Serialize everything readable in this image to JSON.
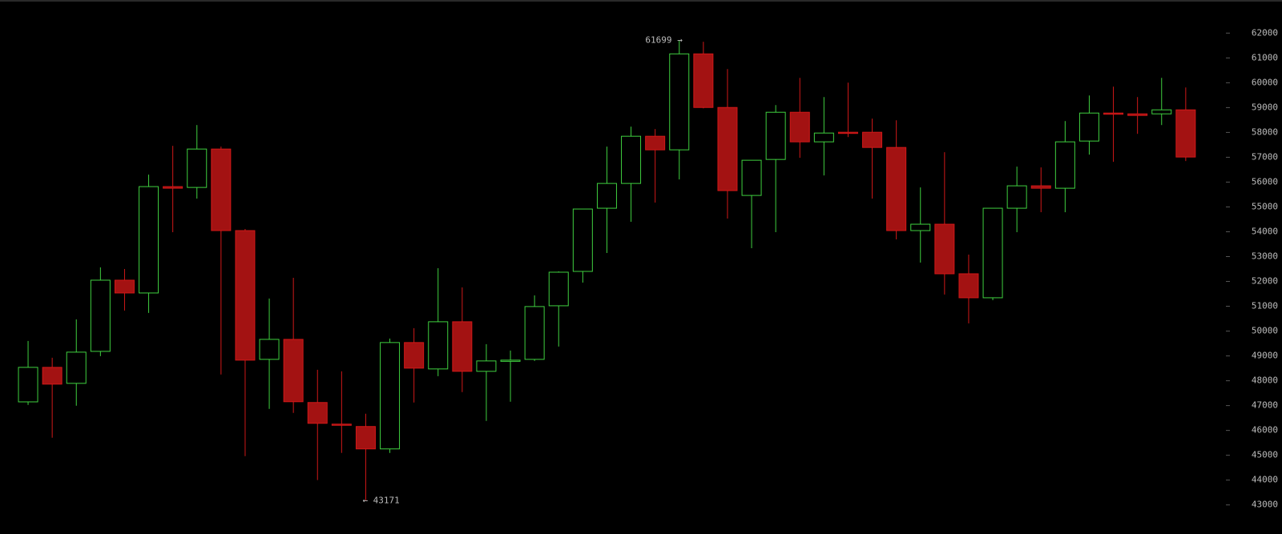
{
  "chart_data": {
    "type": "candlestick",
    "up_color": "#3fcf3f",
    "down_color": "#a31212",
    "down_edge": "#d01818",
    "open": [
      47150,
      48540,
      47896,
      49184,
      52050,
      51535,
      55818,
      55785,
      57331,
      54047,
      48862,
      49667,
      47124,
      46254,
      46158,
      45256,
      49539,
      48476,
      50376,
      48380,
      48798,
      48862,
      51020,
      52404,
      54948,
      55946,
      57846,
      57299,
      61163,
      59005,
      55463,
      56912,
      58812,
      57621,
      58007,
      58007,
      57395,
      54047,
      54304,
      52308,
      51342,
      54948,
      55850,
      55753,
      57653,
      58780,
      58748,
      58748,
      58909
    ],
    "high": [
      49603,
      48927,
      50472,
      52565,
      52501,
      56301,
      57460,
      58297,
      57428,
      54111,
      51310,
      52147,
      48444,
      48380,
      46673,
      49700,
      50118,
      52533,
      51760,
      49474,
      49217,
      51438,
      52404,
      54916,
      57428,
      58233,
      58136,
      61699,
      61650,
      60551,
      56880,
      59102,
      60197,
      59424,
      60004,
      58555,
      58490,
      55785,
      57202,
      53081,
      54948,
      56623,
      56591,
      58458,
      59488,
      59843,
      59424,
      60197,
      59810
    ],
    "low": [
      47027,
      45707,
      46995,
      48991,
      50827,
      50730,
      53982,
      55335,
      48251,
      44966,
      46866,
      46705,
      44000,
      45095,
      43171,
      45095,
      47124,
      48186,
      47542,
      46383,
      47156,
      48800,
      49378,
      51953,
      53145,
      54401,
      55174,
      56107,
      58970,
      54530,
      53338,
      53982,
      56977,
      56268,
      57814,
      55335,
      53692,
      52759,
      51471,
      50311,
      51245,
      53982,
      54787,
      54787,
      57106,
      56816,
      57943,
      58297,
      56848
    ],
    "close": [
      48540,
      47864,
      49152,
      52050,
      51535,
      55818,
      55753,
      57331,
      54047,
      48830,
      49667,
      47156,
      46286,
      46222,
      45256,
      49539,
      48508,
      50376,
      48380,
      48798,
      48830,
      50988,
      52372,
      54916,
      55946,
      57846,
      57299,
      61163,
      59005,
      55657,
      56880,
      58812,
      57621,
      57975,
      57975,
      57395,
      54047,
      54304,
      52308,
      51342,
      54948,
      55850,
      55753,
      57621,
      58780,
      58748,
      58683,
      58909,
      57009
    ],
    "ylim": [
      42700,
      63300
    ],
    "yticks": [
      43000,
      44000,
      45000,
      46000,
      47000,
      48000,
      49000,
      50000,
      51000,
      52000,
      53000,
      54000,
      55000,
      56000,
      57000,
      58000,
      59000,
      60000,
      61000,
      62000
    ],
    "annotations": [
      {
        "text": "61699 →",
        "index": 27,
        "at": "high"
      },
      {
        "text": "← 43171",
        "index": 14,
        "at": "low"
      }
    ]
  }
}
